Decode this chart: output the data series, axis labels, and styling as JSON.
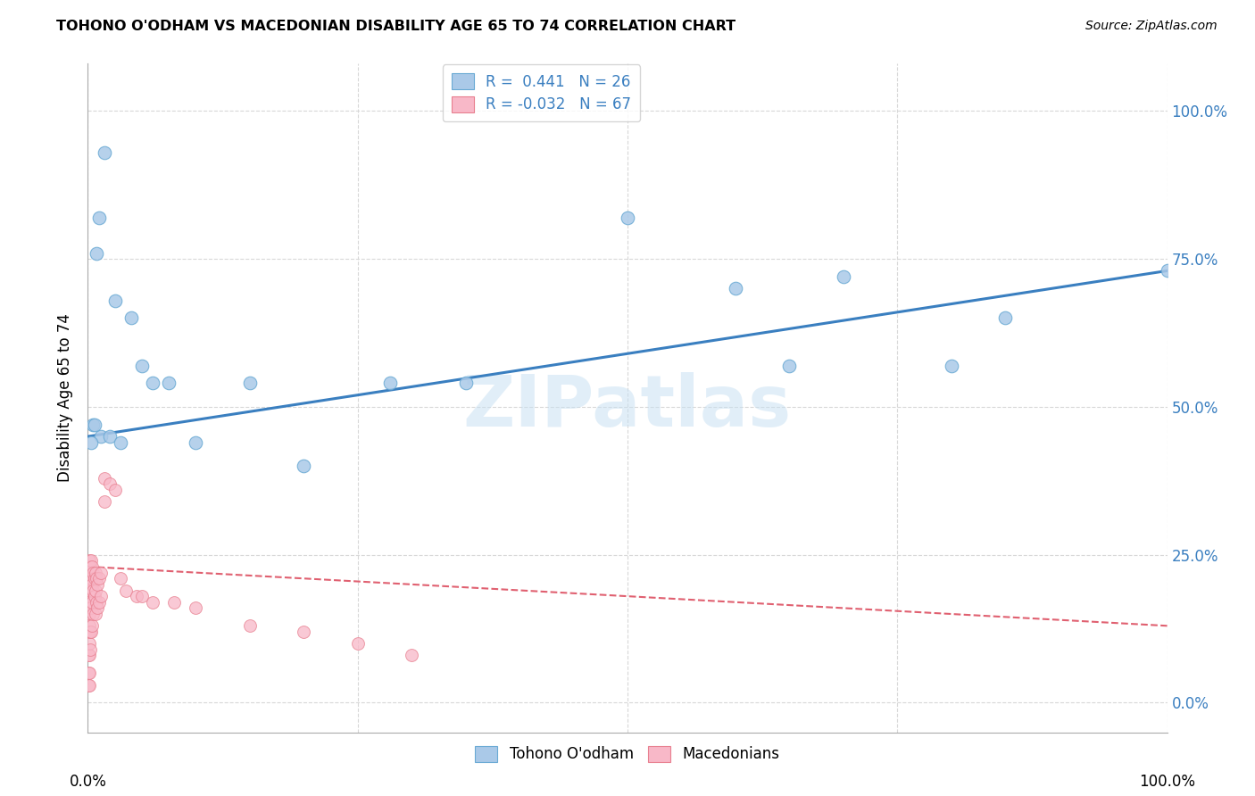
{
  "title": "TOHONO O'ODHAM VS MACEDONIAN DISABILITY AGE 65 TO 74 CORRELATION CHART",
  "source": "Source: ZipAtlas.com",
  "ylabel": "Disability Age 65 to 74",
  "ytick_values": [
    0,
    25,
    50,
    75,
    100
  ],
  "xlim": [
    0,
    100
  ],
  "ylim": [
    -5,
    108
  ],
  "blue_color": "#aac9e8",
  "blue_edge": "#6aaad4",
  "pink_color": "#f8b8c8",
  "pink_edge": "#e88090",
  "line_blue": "#3a7fc0",
  "line_pink": "#e06070",
  "tohono_x": [
    1.5,
    1.0,
    0.8,
    2.5,
    4.0,
    5.0,
    6.0,
    7.5,
    10.0,
    15.0,
    20.0,
    28.0,
    35.0,
    50.0,
    60.0,
    65.0,
    70.0,
    80.0,
    85.0,
    100.0,
    1.2,
    2.0,
    3.0,
    0.5,
    0.3,
    0.6
  ],
  "tohono_y": [
    93.0,
    82.0,
    76.0,
    68.0,
    65.0,
    57.0,
    54.0,
    54.0,
    44.0,
    54.0,
    40.0,
    54.0,
    54.0,
    82.0,
    70.0,
    57.0,
    72.0,
    57.0,
    65.0,
    73.0,
    45.0,
    45.0,
    44.0,
    47.0,
    44.0,
    47.0
  ],
  "mac_x_dense": [
    0.05,
    0.05,
    0.05,
    0.05,
    0.05,
    0.05,
    0.05,
    0.1,
    0.1,
    0.1,
    0.1,
    0.1,
    0.1,
    0.1,
    0.1,
    0.15,
    0.15,
    0.15,
    0.15,
    0.15,
    0.15,
    0.2,
    0.2,
    0.2,
    0.2,
    0.2,
    0.2,
    0.3,
    0.3,
    0.3,
    0.3,
    0.3,
    0.4,
    0.4,
    0.4,
    0.4,
    0.5,
    0.5,
    0.5,
    0.6,
    0.6,
    0.7,
    0.7,
    0.7,
    0.8,
    0.8,
    0.9,
    0.9,
    1.0,
    1.0,
    1.2,
    1.2,
    1.5,
    1.5,
    2.0,
    2.5,
    3.0,
    3.5,
    4.5,
    5.0,
    6.0,
    8.0,
    10.0,
    15.0,
    20.0,
    25.0,
    30.0
  ],
  "mac_y_dense": [
    20.0,
    17.0,
    15.0,
    12.0,
    8.0,
    5.0,
    3.0,
    22.0,
    20.0,
    18.0,
    15.0,
    12.0,
    8.0,
    5.0,
    3.0,
    24.0,
    22.0,
    20.0,
    17.0,
    13.0,
    10.0,
    23.0,
    21.0,
    19.0,
    16.0,
    12.0,
    9.0,
    24.0,
    21.0,
    19.0,
    16.0,
    12.0,
    23.0,
    20.0,
    17.0,
    13.0,
    22.0,
    19.0,
    15.0,
    21.0,
    18.0,
    22.0,
    19.0,
    15.0,
    21.0,
    17.0,
    20.0,
    16.0,
    21.0,
    17.0,
    22.0,
    18.0,
    38.0,
    34.0,
    37.0,
    36.0,
    21.0,
    19.0,
    18.0,
    18.0,
    17.0,
    17.0,
    16.0,
    13.0,
    12.0,
    10.0,
    8.0
  ],
  "watermark_text": "ZIPatlas",
  "background_color": "#ffffff",
  "grid_color": "#d8d8d8",
  "title_fontsize": 11.5,
  "source_fontsize": 10,
  "axis_label_fontsize": 12,
  "tick_fontsize": 12,
  "legend_fontsize": 12
}
